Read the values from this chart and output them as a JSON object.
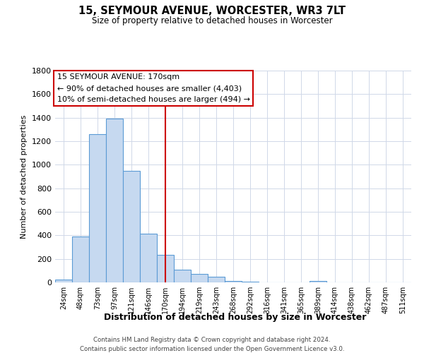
{
  "title": "15, SEYMOUR AVENUE, WORCESTER, WR3 7LT",
  "subtitle": "Size of property relative to detached houses in Worcester",
  "xlabel": "Distribution of detached houses by size in Worcester",
  "ylabel": "Number of detached properties",
  "bar_labels": [
    "24sqm",
    "48sqm",
    "73sqm",
    "97sqm",
    "121sqm",
    "146sqm",
    "170sqm",
    "194sqm",
    "219sqm",
    "243sqm",
    "268sqm",
    "292sqm",
    "316sqm",
    "341sqm",
    "365sqm",
    "389sqm",
    "414sqm",
    "438sqm",
    "462sqm",
    "487sqm",
    "511sqm"
  ],
  "bar_heights": [
    25,
    390,
    1260,
    1395,
    950,
    415,
    235,
    110,
    70,
    50,
    10,
    5,
    0,
    0,
    0,
    10,
    0,
    0,
    0,
    0,
    0
  ],
  "bar_color": "#c6d9f0",
  "bar_edgecolor": "#5b9bd5",
  "vline_x": 6,
  "vline_color": "#cc0000",
  "ylim": [
    0,
    1800
  ],
  "yticks": [
    0,
    200,
    400,
    600,
    800,
    1000,
    1200,
    1400,
    1600,
    1800
  ],
  "annotation_title": "15 SEYMOUR AVENUE: 170sqm",
  "annotation_line1": "← 90% of detached houses are smaller (4,403)",
  "annotation_line2": "10% of semi-detached houses are larger (494) →",
  "annotation_box_color": "#ffffff",
  "annotation_box_edgecolor": "#cc0000",
  "footer1": "Contains HM Land Registry data © Crown copyright and database right 2024.",
  "footer2": "Contains public sector information licensed under the Open Government Licence v3.0.",
  "background_color": "#ffffff",
  "grid_color": "#d0d8e8"
}
